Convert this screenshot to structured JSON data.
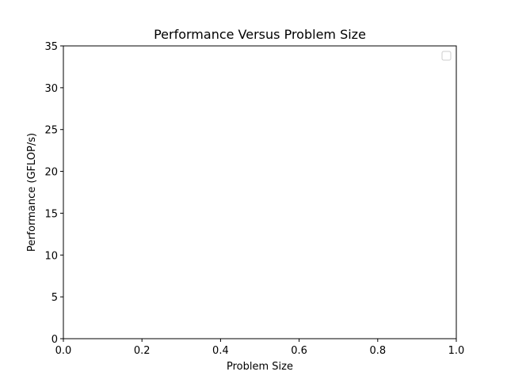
{
  "chart_data": {
    "type": "line",
    "title": "Performance Versus Problem Size",
    "xlabel": "Problem Size",
    "ylabel": "Performance (GFLOP/s)",
    "xlim": [
      0,
      1
    ],
    "ylim": [
      0,
      35
    ],
    "x_ticks": [
      "0.0",
      "0.2",
      "0.4",
      "0.6",
      "0.8",
      "1.0"
    ],
    "y_ticks": [
      "0",
      "5",
      "10",
      "15",
      "20",
      "25",
      "30",
      "35"
    ],
    "series": [],
    "grid": false,
    "legend": {
      "placement": "top-right",
      "entries": []
    }
  }
}
